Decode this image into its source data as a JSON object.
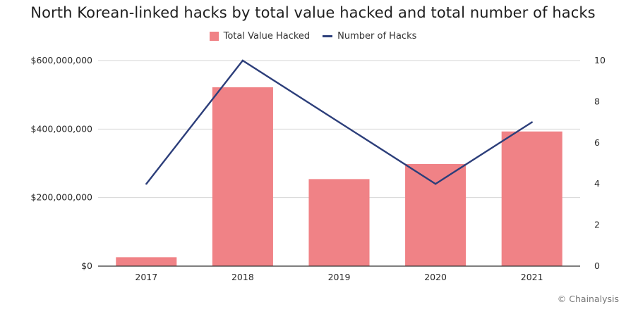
{
  "chart_data": {
    "type": "bar",
    "title": "North Korean-linked hacks by total value hacked and total number of hacks",
    "categories": [
      "2017",
      "2018",
      "2019",
      "2020",
      "2021"
    ],
    "series": [
      {
        "name": "Total Value Hacked",
        "type": "bar",
        "axis": "left",
        "color": "#f08286",
        "values": [
          26000000,
          522000000,
          254000000,
          298000000,
          393000000
        ]
      },
      {
        "name": "Number of Hacks",
        "type": "line",
        "axis": "right",
        "color": "#2c3e7a",
        "values": [
          4,
          10,
          7,
          4,
          7
        ]
      }
    ],
    "y_left": {
      "ylim": [
        0,
        600000000
      ],
      "ticks": [
        0,
        200000000,
        400000000,
        600000000
      ],
      "tick_labels": [
        "$0",
        "$200,000,000",
        "$400,000,000",
        "$600,000,000"
      ]
    },
    "y_right": {
      "ylim": [
        0,
        10
      ],
      "ticks": [
        0,
        2,
        4,
        6,
        8,
        10
      ],
      "tick_labels": [
        "0",
        "2",
        "4",
        "6",
        "8",
        "10"
      ]
    },
    "xlabel": "",
    "ylabel": "",
    "grid": true,
    "legend_position": "top-center",
    "source": "© Chainalysis"
  }
}
